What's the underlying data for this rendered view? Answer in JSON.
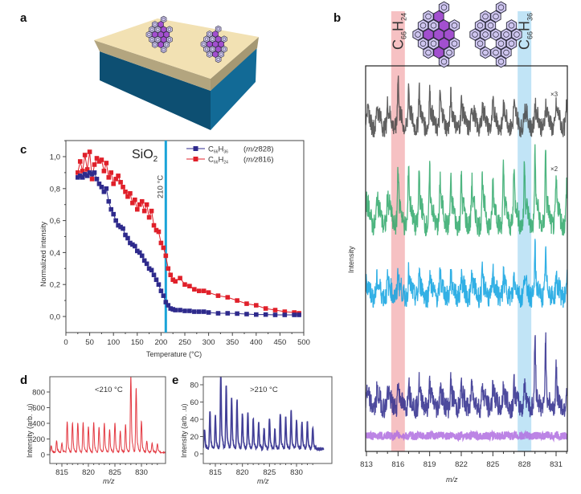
{
  "panels": {
    "a": {
      "letter": "a",
      "description": "substrate with adsorbed molecules"
    },
    "b": {
      "letter": "b"
    },
    "c": {
      "letter": "c"
    },
    "d": {
      "letter": "d"
    },
    "e": {
      "letter": "e"
    }
  },
  "colors": {
    "red_series": "#e0202a",
    "blue_series": "#2e2a8c",
    "cut_line": "#1aa3d8",
    "highlight_red": "#f4b6b8",
    "highlight_blue": "#b6dff4",
    "trace_gray": "#444444",
    "trace_green": "#2fa86a",
    "trace_cyan": "#0ea2e0",
    "trace_navy": "#2e2a8c",
    "trace_violet": "#b06ee0",
    "substrate_top": "#f3e2b5",
    "substrate_film_side": "#b8a882",
    "substrate_body": "#0d5a80"
  },
  "chart_data": [
    {
      "id": "c",
      "type": "line",
      "title": "SiO2",
      "title_main": "SiO",
      "title_sub": "2",
      "xlabel": "Temperature (°C)",
      "ylabel": "Normalized intensity",
      "xlim": [
        0,
        500
      ],
      "ylim": [
        -0.1,
        1.1
      ],
      "xticks": [
        0,
        50,
        100,
        150,
        200,
        250,
        300,
        350,
        400,
        450,
        500
      ],
      "yticks": [
        0.0,
        0.2,
        0.4,
        0.6,
        0.8,
        1.0
      ],
      "ytick_labels": [
        "0,0",
        "0,2",
        "0,4",
        "0,6",
        "0,8",
        "1,0"
      ],
      "annotation": {
        "label": "210 °C",
        "x": 210
      },
      "legend_position": "top-right",
      "series": [
        {
          "name": "C66H36",
          "name_main": "C",
          "name_sub1": "66",
          "name_h": "H",
          "name_sub2": "36",
          "mz_label": "(m/z 828)",
          "color": "#2e2a8c",
          "x": [
            25,
            30,
            35,
            40,
            45,
            50,
            55,
            60,
            65,
            70,
            75,
            80,
            85,
            90,
            95,
            100,
            105,
            110,
            115,
            120,
            125,
            130,
            135,
            140,
            145,
            150,
            155,
            160,
            165,
            170,
            175,
            180,
            185,
            190,
            195,
            200,
            205,
            210,
            215,
            220,
            225,
            230,
            240,
            250,
            260,
            270,
            280,
            290,
            300,
            320,
            340,
            360,
            380,
            400,
            420,
            440,
            460,
            480,
            490
          ],
          "y": [
            0.87,
            0.88,
            0.87,
            0.89,
            0.88,
            0.9,
            0.89,
            0.9,
            0.86,
            0.83,
            0.81,
            0.78,
            0.8,
            0.72,
            0.67,
            0.64,
            0.6,
            0.57,
            0.56,
            0.55,
            0.51,
            0.49,
            0.46,
            0.45,
            0.44,
            0.41,
            0.4,
            0.38,
            0.35,
            0.33,
            0.3,
            0.29,
            0.26,
            0.23,
            0.2,
            0.16,
            0.13,
            0.09,
            0.07,
            0.05,
            0.045,
            0.04,
            0.04,
            0.035,
            0.035,
            0.03,
            0.03,
            0.03,
            0.025,
            0.02,
            0.02,
            0.018,
            0.015,
            0.012,
            0.012,
            0.01,
            0.01,
            0.01,
            0.01
          ]
        },
        {
          "name": "C66H24",
          "name_main": "C",
          "name_sub1": "66",
          "name_h": "H",
          "name_sub2": "24",
          "mz_label": "(m/z 816)",
          "color": "#e0202a",
          "x": [
            25,
            30,
            35,
            40,
            45,
            50,
            55,
            60,
            65,
            70,
            75,
            80,
            85,
            90,
            95,
            100,
            105,
            110,
            115,
            120,
            125,
            130,
            135,
            140,
            145,
            150,
            155,
            160,
            165,
            170,
            175,
            180,
            185,
            190,
            195,
            200,
            205,
            210,
            215,
            220,
            225,
            230,
            240,
            250,
            260,
            270,
            280,
            290,
            300,
            320,
            340,
            360,
            380,
            400,
            420,
            440,
            460,
            480,
            490
          ],
          "y": [
            0.9,
            0.97,
            0.91,
            1.01,
            0.92,
            1.03,
            0.86,
            0.95,
            0.99,
            0.97,
            0.98,
            0.91,
            0.96,
            0.87,
            0.9,
            0.83,
            0.86,
            0.88,
            0.84,
            0.81,
            0.78,
            0.75,
            0.77,
            0.71,
            0.73,
            0.67,
            0.7,
            0.72,
            0.66,
            0.7,
            0.62,
            0.66,
            0.57,
            0.54,
            0.53,
            0.46,
            0.43,
            0.38,
            0.3,
            0.26,
            0.23,
            0.22,
            0.24,
            0.2,
            0.19,
            0.17,
            0.16,
            0.16,
            0.15,
            0.13,
            0.12,
            0.1,
            0.08,
            0.07,
            0.05,
            0.04,
            0.03,
            0.025,
            0.02
          ]
        }
      ]
    },
    {
      "id": "d",
      "type": "line",
      "annotation": "<210 °C",
      "xlabel": "m/z",
      "ylabel": "Intensity (arb. .u)",
      "xlim": [
        813,
        834
      ],
      "ylim": [
        -100,
        1000
      ],
      "xticks": [
        815,
        820,
        825,
        830
      ],
      "yticks": [
        0,
        200,
        400,
        600,
        800
      ],
      "color": "#e0202a",
      "peaks_x": [
        813,
        814,
        815,
        816,
        817,
        818,
        819,
        820,
        821,
        822,
        823,
        824,
        825,
        826,
        827,
        828,
        829,
        830,
        831,
        832,
        833
      ],
      "peaks_y": [
        80,
        140,
        110,
        360,
        355,
        350,
        350,
        300,
        350,
        300,
        340,
        270,
        350,
        250,
        330,
        900,
        760,
        370,
        140,
        110,
        100
      ],
      "baseline": 30
    },
    {
      "id": "e",
      "type": "line",
      "annotation": ">210 °C",
      "xlabel": "m/z",
      "ylabel": "Intensity (arb. .u)",
      "xlim": [
        813,
        834
      ],
      "ylim": [
        -10,
        90
      ],
      "xticks": [
        815,
        820,
        825,
        830
      ],
      "yticks": [
        0,
        20,
        40,
        60,
        80
      ],
      "color": "#2e2a8c",
      "peaks_x": [
        813,
        814,
        815,
        816,
        817,
        818,
        819,
        820,
        821,
        822,
        823,
        824,
        825,
        826,
        827,
        828,
        829,
        830,
        831,
        832,
        833
      ],
      "peaks_y": [
        20,
        40,
        36,
        80,
        67,
        55,
        52,
        37,
        39,
        31,
        27,
        22,
        32,
        20,
        38,
        33,
        40,
        30,
        29,
        28,
        22
      ],
      "baseline": 6
    },
    {
      "id": "b",
      "type": "line",
      "xlabel": "m/z",
      "ylabel": "Intensity",
      "xlim": [
        813,
        832.2
      ],
      "xticks": [
        813,
        816,
        819,
        822,
        825,
        828,
        831
      ],
      "highlight_bands": [
        {
          "center": 816,
          "label_main": "C",
          "label_sub1": "66",
          "label_h": "H",
          "label_sub2": "24",
          "color": "#f4b6b8"
        },
        {
          "center": 828,
          "label_main": "C",
          "label_sub1": "66",
          "label_h": "H",
          "label_sub2": "36",
          "color": "#b6dff4"
        }
      ],
      "series": [
        {
          "name": "trace-1",
          "color": "#444444",
          "scale_label": "×3",
          "peaks_y": [
            0.25,
            0.35,
            0.35,
            1.0,
            0.8,
            0.75,
            0.65,
            0.6,
            0.55,
            0.4,
            0.3,
            0.3,
            0.35,
            0.3,
            0.35,
            0.3,
            0.35,
            0.35,
            0.3,
            0.35
          ]
        },
        {
          "name": "trace-2",
          "color": "#2fa86a",
          "scale_label": "×2",
          "peaks_y": [
            0.2,
            0.3,
            0.3,
            0.85,
            0.85,
            0.75,
            0.7,
            0.6,
            0.55,
            0.6,
            0.55,
            0.65,
            0.55,
            0.75,
            0.85,
            0.9,
            1.0,
            1.05,
            0.55,
            0.5
          ]
        },
        {
          "name": "trace-3",
          "color": "#0ea2e0",
          "scale_label": "",
          "peaks_y": [
            0.3,
            0.35,
            0.35,
            0.6,
            0.55,
            0.55,
            0.55,
            0.6,
            0.5,
            0.55,
            0.5,
            0.55,
            0.55,
            0.5,
            0.5,
            0.55,
            1.3,
            1.2,
            0.45,
            0.4
          ]
        },
        {
          "name": "trace-4",
          "color": "#2e2a8c",
          "scale_label": "",
          "peaks_y": [
            0.3,
            0.35,
            0.35,
            0.65,
            0.75,
            0.6,
            0.55,
            0.55,
            0.6,
            0.5,
            0.6,
            0.55,
            0.6,
            0.55,
            0.6,
            0.6,
            2.3,
            2.1,
            1.1,
            0.45
          ]
        },
        {
          "name": "trace-5",
          "color": "#b06ee0",
          "scale_label": "",
          "peaks_y": [
            0.05,
            0.05,
            0.05,
            0.05,
            0.05,
            0.05,
            0.05,
            0.05,
            0.05,
            0.05,
            0.05,
            0.05,
            0.05,
            0.05,
            0.05,
            0.05,
            0.05,
            0.05,
            0.05,
            0.05
          ]
        }
      ]
    }
  ]
}
